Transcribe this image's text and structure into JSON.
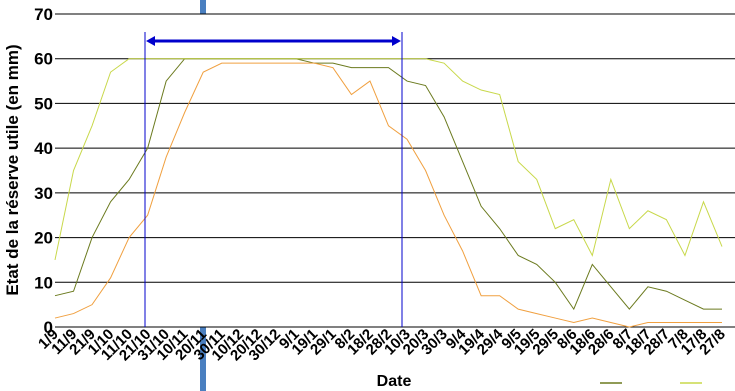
{
  "chart_data": {
    "type": "line",
    "x_label": "Date",
    "y_label": "Etat de la réserve utile (en mm)",
    "categories": [
      "1/9",
      "11/9",
      "21/9",
      "1/10",
      "11/10",
      "21/10",
      "31/10",
      "10/11",
      "20/11",
      "30/11",
      "10/12",
      "20/12",
      "30/12",
      "9/1",
      "19/1",
      "29/1",
      "8/2",
      "18/2",
      "28/2",
      "10/3",
      "20/3",
      "30/3",
      "9/4",
      "19/4",
      "29/4",
      "9/5",
      "19/5",
      "29/5",
      "8/6",
      "18/6",
      "28/6",
      "8/7",
      "18/7",
      "28/7",
      "7/8",
      "17/8",
      "27/8"
    ],
    "series": [
      {
        "color": "#6b7a1e",
        "values": [
          7,
          8,
          20,
          28,
          33,
          40,
          55,
          60,
          60,
          60,
          60,
          60,
          60,
          60,
          59,
          59,
          58,
          58,
          58,
          55,
          54,
          47,
          37,
          27,
          22,
          16,
          14,
          10,
          4,
          14,
          9,
          4,
          9,
          8,
          6,
          4,
          4
        ]
      },
      {
        "color": "#c8d84a",
        "values": [
          15,
          35,
          45,
          57,
          60,
          60,
          60,
          60,
          60,
          60,
          60,
          60,
          60,
          60,
          60,
          60,
          60,
          60,
          60,
          60,
          60,
          59,
          55,
          53,
          52,
          37,
          33,
          22,
          24,
          16,
          33,
          22,
          26,
          24,
          16,
          28,
          18
        ]
      },
      {
        "color": "#f0a040",
        "values": [
          2,
          3,
          5,
          11,
          20,
          25,
          38,
          48,
          57,
          59,
          59,
          59,
          59,
          59,
          59,
          58,
          52,
          55,
          45,
          42,
          35,
          25,
          17,
          7,
          7,
          4,
          3,
          2,
          1,
          2,
          1,
          0,
          1,
          1,
          1,
          1,
          1
        ]
      }
    ],
    "ylim": [
      0,
      70
    ],
    "yticks": [
      0,
      10,
      20,
      30,
      40,
      50,
      60,
      70
    ],
    "grid": true
  }
}
